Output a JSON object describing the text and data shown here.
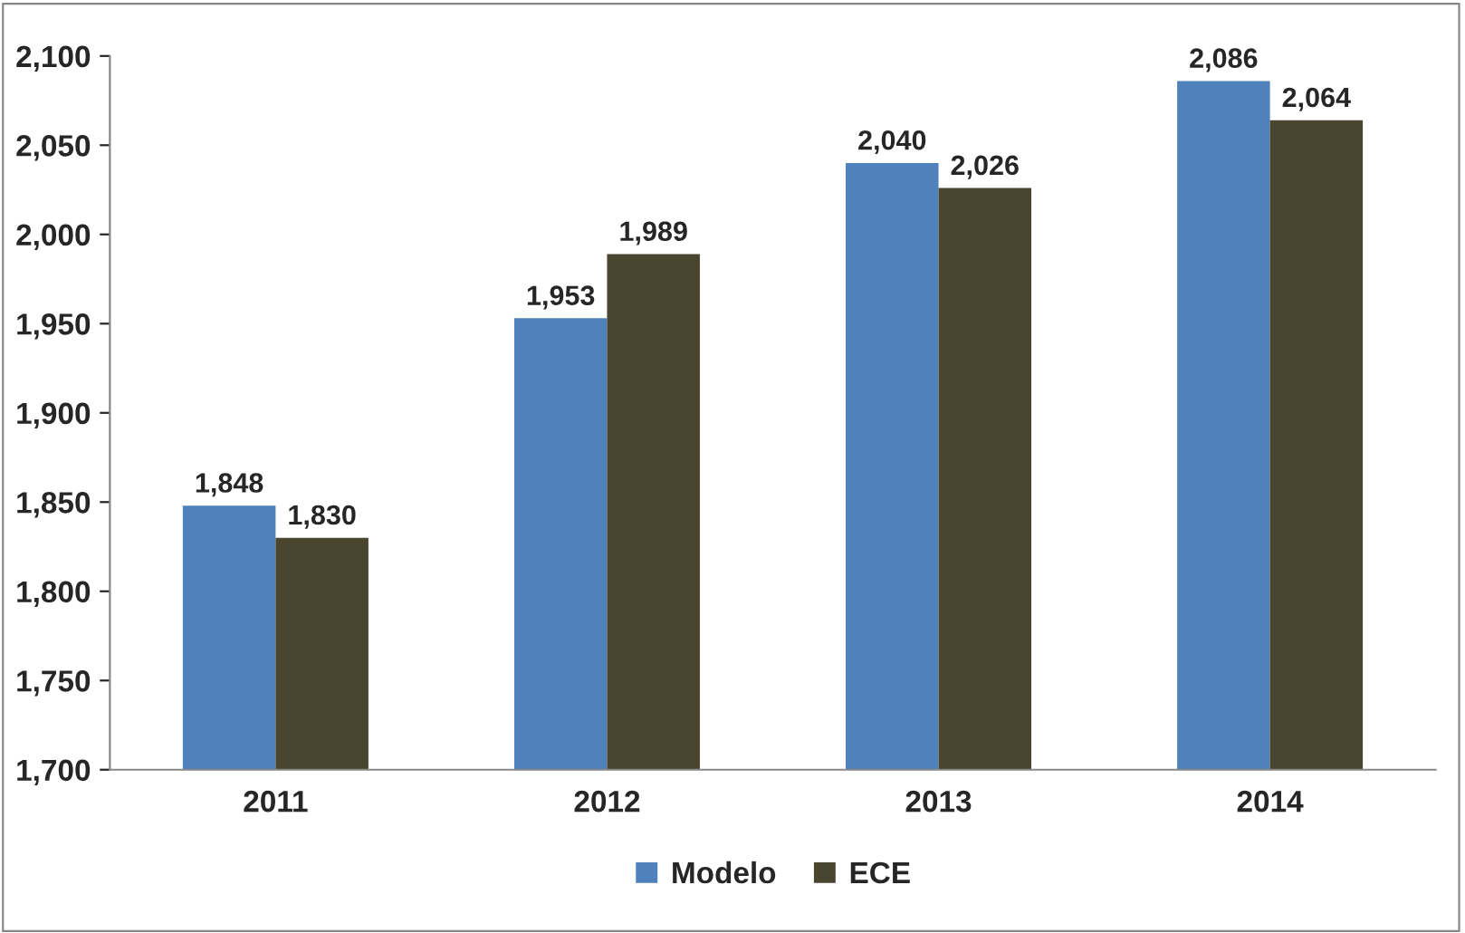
{
  "chart_data": {
    "type": "bar",
    "categories": [
      "2011",
      "2012",
      "2013",
      "2014"
    ],
    "series": [
      {
        "name": "Modelo",
        "color": "#4f81bd",
        "values": [
          1848,
          1953,
          2040,
          2086
        ],
        "value_labels": [
          "1,848",
          "1,953",
          "2,040",
          "2,086"
        ]
      },
      {
        "name": "ECE",
        "color": "#4a452e",
        "values": [
          1830,
          1989,
          2026,
          2064
        ],
        "value_labels": [
          "1,830",
          "1,989",
          "2,026",
          "2,064"
        ]
      }
    ],
    "ylim": [
      1700,
      2100
    ],
    "yticks": [
      {
        "value": 1700,
        "label": "1,700"
      },
      {
        "value": 1750,
        "label": "1,750"
      },
      {
        "value": 1800,
        "label": "1,800"
      },
      {
        "value": 1850,
        "label": "1,850"
      },
      {
        "value": 1900,
        "label": "1,900"
      },
      {
        "value": 1950,
        "label": "1,950"
      },
      {
        "value": 2000,
        "label": "2,000"
      },
      {
        "value": 2050,
        "label": "2,050"
      },
      {
        "value": 2100,
        "label": "2,100"
      }
    ],
    "grid": false,
    "legend": "bottom"
  }
}
